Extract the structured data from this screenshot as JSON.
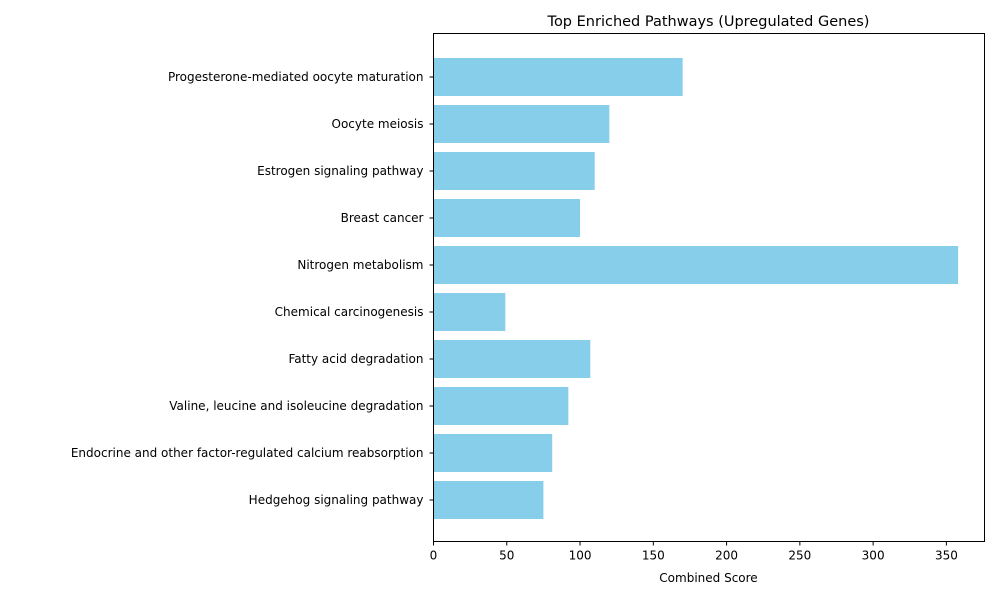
{
  "chart_data": {
    "type": "bar",
    "orientation": "horizontal",
    "title": "Top Enriched Pathways (Upregulated Genes)",
    "xlabel": "Combined Score",
    "ylabel": "",
    "categories": [
      "Progesterone-mediated oocyte maturation",
      "Oocyte meiosis",
      "Estrogen signaling pathway",
      "Breast cancer",
      "Nitrogen metabolism",
      "Chemical carcinogenesis",
      "Fatty acid degradation",
      "Valine, leucine and isoleucine degradation",
      "Endocrine and other factor-regulated calcium reabsorption",
      "Hedgehog signaling pathway"
    ],
    "values": [
      170,
      120,
      110,
      100,
      358,
      49,
      107,
      92,
      81,
      75
    ],
    "xlim": [
      0,
      376
    ],
    "xticks": [
      0,
      50,
      100,
      150,
      200,
      250,
      300,
      350
    ],
    "bar_color": "#87CEEB",
    "grid": false
  }
}
